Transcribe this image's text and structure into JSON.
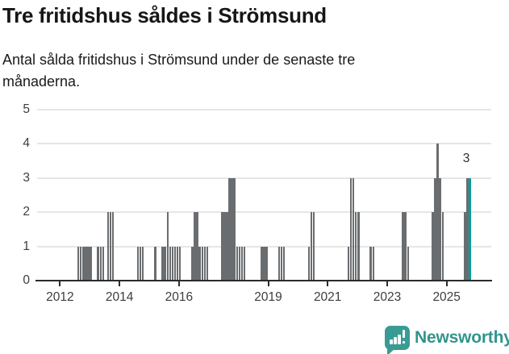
{
  "title": "Tre fritidshus såldes i Strömsund",
  "subtitle_lines": [
    "Antal sålda fritidshus i Strömsund under de senaste tre",
    "månaderna."
  ],
  "annotation": {
    "label": "3"
  },
  "logo": {
    "text": "Newsworthy",
    "icon": "speech-bubble-bar-chart"
  },
  "colors": {
    "bar": "#6a6d70",
    "highlight": "#009f9c",
    "grid": "#e6e6e6",
    "axis": "#2b2b2b",
    "logo_teal": "#3a9b94"
  },
  "chart_data": {
    "type": "bar",
    "title": "Tre fritidshus såldes i Strömsund",
    "subtitle": "Antal sålda fritidshus i Strömsund under de senaste tre månaderna.",
    "ylim": [
      0,
      5
    ],
    "y_ticks": [
      0,
      1,
      2,
      3,
      4,
      5
    ],
    "x_ticks": [
      {
        "year": 2012,
        "label": "2012"
      },
      {
        "year": 2014,
        "label": "2014"
      },
      {
        "year": 2016,
        "label": "2016"
      },
      {
        "year": 2019,
        "label": "2019"
      },
      {
        "year": 2021,
        "label": "2021"
      },
      {
        "year": 2023,
        "label": "2023"
      },
      {
        "year": 2025,
        "label": "2025"
      }
    ],
    "grid": true,
    "legend": "none",
    "highlight_month": "2025-10",
    "highlight_value_label": "3",
    "series": [
      {
        "month": "2012-08",
        "value": 1
      },
      {
        "month": "2012-09",
        "value": 1
      },
      {
        "month": "2012-10",
        "value": 1
      },
      {
        "month": "2012-11",
        "value": 1
      },
      {
        "month": "2012-12",
        "value": 1
      },
      {
        "month": "2013-01",
        "value": 1
      },
      {
        "month": "2013-04",
        "value": 1
      },
      {
        "month": "2013-05",
        "value": 1
      },
      {
        "month": "2013-06",
        "value": 1
      },
      {
        "month": "2013-08",
        "value": 2
      },
      {
        "month": "2013-09",
        "value": 2
      },
      {
        "month": "2013-10",
        "value": 2
      },
      {
        "month": "2014-08",
        "value": 1
      },
      {
        "month": "2014-09",
        "value": 1
      },
      {
        "month": "2014-10",
        "value": 1
      },
      {
        "month": "2015-03",
        "value": 1
      },
      {
        "month": "2015-06",
        "value": 1
      },
      {
        "month": "2015-07",
        "value": 1
      },
      {
        "month": "2015-08",
        "value": 2
      },
      {
        "month": "2015-09",
        "value": 1
      },
      {
        "month": "2015-10",
        "value": 1
      },
      {
        "month": "2015-11",
        "value": 1
      },
      {
        "month": "2015-12",
        "value": 1
      },
      {
        "month": "2016-01",
        "value": 1
      },
      {
        "month": "2016-06",
        "value": 1
      },
      {
        "month": "2016-07",
        "value": 2
      },
      {
        "month": "2016-08",
        "value": 2
      },
      {
        "month": "2016-09",
        "value": 1
      },
      {
        "month": "2016-10",
        "value": 1
      },
      {
        "month": "2016-11",
        "value": 1
      },
      {
        "month": "2016-12",
        "value": 1
      },
      {
        "month": "2017-06",
        "value": 2
      },
      {
        "month": "2017-07",
        "value": 2
      },
      {
        "month": "2017-08",
        "value": 2
      },
      {
        "month": "2017-09",
        "value": 3
      },
      {
        "month": "2017-10",
        "value": 3
      },
      {
        "month": "2017-11",
        "value": 3
      },
      {
        "month": "2017-12",
        "value": 1
      },
      {
        "month": "2018-01",
        "value": 1
      },
      {
        "month": "2018-02",
        "value": 1
      },
      {
        "month": "2018-03",
        "value": 1
      },
      {
        "month": "2018-10",
        "value": 1
      },
      {
        "month": "2018-11",
        "value": 1
      },
      {
        "month": "2018-12",
        "value": 1
      },
      {
        "month": "2019-05",
        "value": 1
      },
      {
        "month": "2019-06",
        "value": 1
      },
      {
        "month": "2019-07",
        "value": 1
      },
      {
        "month": "2020-05",
        "value": 1
      },
      {
        "month": "2020-06",
        "value": 2
      },
      {
        "month": "2020-07",
        "value": 2
      },
      {
        "month": "2021-09",
        "value": 1
      },
      {
        "month": "2021-10",
        "value": 3
      },
      {
        "month": "2021-11",
        "value": 3
      },
      {
        "month": "2021-12",
        "value": 2
      },
      {
        "month": "2022-01",
        "value": 2
      },
      {
        "month": "2022-06",
        "value": 1
      },
      {
        "month": "2022-07",
        "value": 1
      },
      {
        "month": "2023-07",
        "value": 2
      },
      {
        "month": "2023-08",
        "value": 2
      },
      {
        "month": "2023-09",
        "value": 1
      },
      {
        "month": "2024-07",
        "value": 2
      },
      {
        "month": "2024-08",
        "value": 3
      },
      {
        "month": "2024-09",
        "value": 4
      },
      {
        "month": "2024-10",
        "value": 3
      },
      {
        "month": "2024-11",
        "value": 2
      },
      {
        "month": "2025-08",
        "value": 2
      },
      {
        "month": "2025-09",
        "value": 3
      },
      {
        "month": "2025-10",
        "value": 3
      }
    ]
  }
}
